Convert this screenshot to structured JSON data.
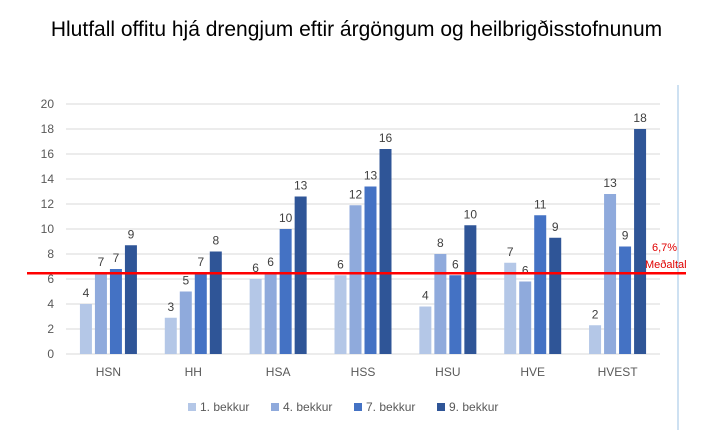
{
  "chart_data": {
    "type": "bar",
    "title": "Hlutfall offitu hjá drengjum eftir árgöngum og heilbrigðisstofnunum",
    "categories": [
      "HSN",
      "HH",
      "HSA",
      "HSS",
      "HSU",
      "HVE",
      "HVEST"
    ],
    "series": [
      {
        "name": "1. bekkur",
        "color": "#b4c7e7",
        "values": [
          4.0,
          2.9,
          6.0,
          6.3,
          3.8,
          7.3,
          2.3
        ],
        "labels": [
          "4",
          "3",
          "6",
          "6",
          "4",
          "7",
          "2"
        ]
      },
      {
        "name": "4. bekkur",
        "color": "#8faadc",
        "values": [
          6.5,
          5.0,
          6.5,
          11.9,
          8.0,
          5.8,
          12.8
        ],
        "labels": [
          "7",
          "5",
          "6",
          "12",
          "8",
          "6",
          "13"
        ]
      },
      {
        "name": "7. bekkur",
        "color": "#4472c4",
        "values": [
          6.8,
          6.5,
          10.0,
          13.4,
          6.3,
          11.1,
          8.6
        ],
        "labels": [
          "7",
          "7",
          "10",
          "13",
          "6",
          "11",
          "9"
        ]
      },
      {
        "name": "9. bekkur",
        "color": "#2f5597",
        "values": [
          8.7,
          8.2,
          12.6,
          16.4,
          10.3,
          9.3,
          18.0
        ],
        "labels": [
          "9",
          "8",
          "13",
          "16",
          "10",
          "9",
          "18"
        ]
      }
    ],
    "ylim": [
      0,
      20
    ],
    "yticks": [
      0,
      2,
      4,
      6,
      8,
      10,
      12,
      14,
      16,
      18,
      20
    ],
    "grid": true,
    "legend_position": "bottom",
    "reference_line": {
      "value": 6.7,
      "label_value": "6,7%",
      "label_text": "Meðaltal",
      "color": "#ff0000"
    }
  }
}
